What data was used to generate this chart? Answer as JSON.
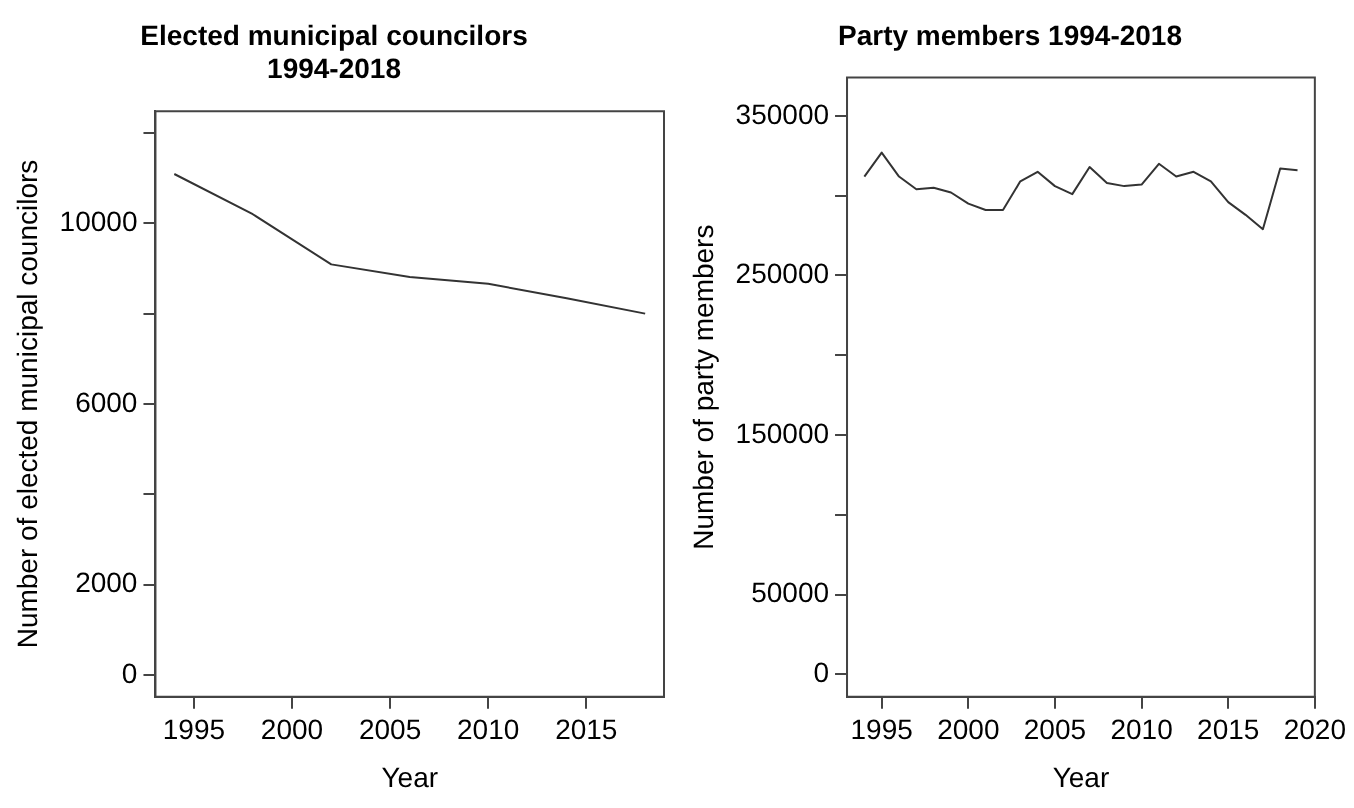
{
  "chart_data": [
    {
      "type": "line",
      "title": "Elected municipal councilors\n1994-2018",
      "xlabel": "Year",
      "ylabel": "Number of elected municipal councilors",
      "x": [
        1994,
        1998,
        2002,
        2006,
        2010,
        2014,
        2018
      ],
      "series": [
        {
          "color": "#333333",
          "values": [
            11090,
            10200,
            9090,
            8810,
            8660,
            8340,
            8000
          ]
        }
      ],
      "xlim": [
        1993.04,
        2018.96
      ],
      "xticks": [
        1995,
        2000,
        2005,
        2010,
        2015
      ],
      "ylim": [
        -480,
        12480
      ],
      "yticks": [
        0,
        2000,
        {
          "value": 4000,
          "label": null
        },
        6000,
        {
          "value": 8000,
          "label": null
        },
        10000,
        {
          "value": 12000,
          "label": null
        }
      ],
      "grid": false,
      "legend": false
    },
    {
      "type": "line",
      "title": "Party members 1994-2018",
      "xlabel": "Year",
      "ylabel": "Number of party members",
      "x": [
        1994,
        1995,
        1996,
        1997,
        1998,
        1999,
        2000,
        2001,
        2002,
        2003,
        2004,
        2005,
        2006,
        2007,
        2008,
        2009,
        2010,
        2011,
        2012,
        2013,
        2014,
        2015,
        2016,
        2017,
        2018,
        2019
      ],
      "series": [
        {
          "color": "#333333",
          "values": [
            312000,
            327000,
            312000,
            304000,
            305000,
            302000,
            295000,
            291000,
            291000,
            309000,
            315000,
            306000,
            301000,
            318000,
            308000,
            306000,
            307000,
            320000,
            312000,
            315000,
            309000,
            296000,
            288000,
            279000,
            317000,
            316000
          ]
        }
      ],
      "xlim": [
        1993,
        2020
      ],
      "xticks": [
        1995,
        2000,
        2005,
        2010,
        2015,
        2020
      ],
      "ylim": [
        -14000,
        374000
      ],
      "yticks": [
        0,
        50000,
        {
          "value": 100000,
          "label": null
        },
        150000,
        {
          "value": 200000,
          "label": null
        },
        250000,
        {
          "value": 300000,
          "label": null
        },
        350000
      ],
      "grid": false,
      "legend": false
    }
  ]
}
